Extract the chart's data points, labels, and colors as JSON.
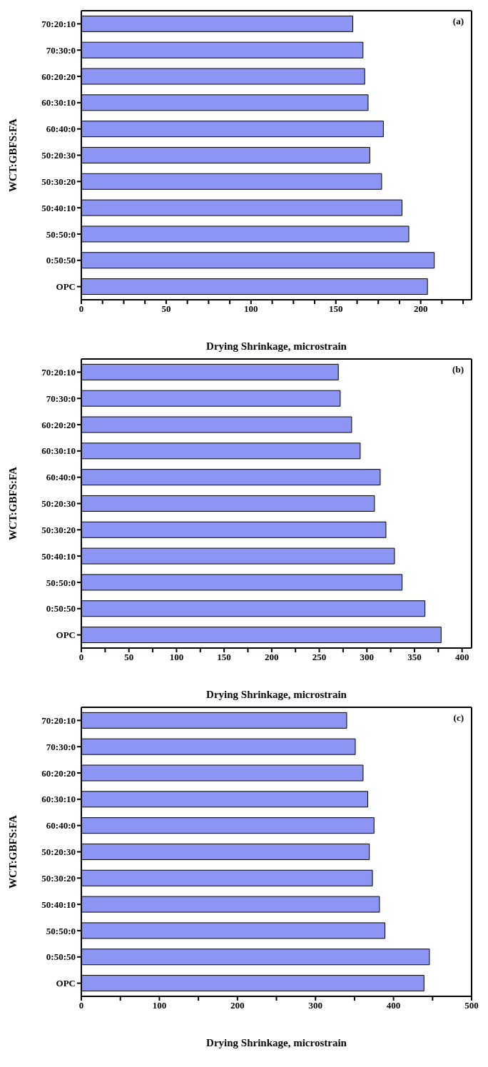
{
  "chart_data": [
    {
      "type": "bar",
      "orientation": "horizontal",
      "xlabel": "Drying Shrinkage, microstrain",
      "ylabel": "WCT:GBFS:FA",
      "annotations": [
        "(a)"
      ],
      "categories": [
        "70:20:10",
        "70:30:0",
        "60:20:20",
        "60:30:10",
        "60:40:0",
        "50:20:30",
        "50:30:20",
        "50:40:10",
        "50:50:0",
        "0:50:50",
        "OPC"
      ],
      "values": [
        160,
        166,
        167,
        169,
        178,
        170,
        177,
        189,
        193,
        208,
        204
      ],
      "color": "#8c94f4",
      "xlim": [
        0,
        230
      ],
      "xticks": [
        0,
        {
          "value": 12.5,
          "label": null
        },
        {
          "value": 25,
          "label": null
        },
        {
          "value": 37.5,
          "label": null
        },
        50,
        {
          "value": 62.5,
          "label": null
        },
        {
          "value": 75,
          "label": null
        },
        {
          "value": 87.5,
          "label": null
        },
        100,
        {
          "value": 112.5,
          "label": null
        },
        {
          "value": 125,
          "label": null
        },
        {
          "value": 137.5,
          "label": null
        },
        150,
        {
          "value": 162.5,
          "label": null
        },
        {
          "value": 175,
          "label": null
        },
        {
          "value": 187.5,
          "label": null
        },
        200,
        {
          "value": 212.5,
          "label": null
        },
        {
          "value": 225,
          "label": null
        }
      ],
      "grid": false,
      "legend": false
    },
    {
      "type": "bar",
      "orientation": "horizontal",
      "xlabel": "Drying Shrinkage, microstrain",
      "ylabel": "WCT:GBFS:FA",
      "annotations": [
        "(b)"
      ],
      "categories": [
        "70:20:10",
        "70:30:0",
        "60:20:20",
        "60:30:10",
        "60:40:0",
        "50:20:30",
        "50:30:20",
        "50:40:10",
        "50:50:0",
        "0:50:50",
        "OPC"
      ],
      "values": [
        270,
        272,
        284,
        293,
        314,
        308,
        320,
        329,
        337,
        361,
        378
      ],
      "color": "#8c94f4",
      "xlim": [
        0,
        410
      ],
      "xticks": [
        0,
        {
          "value": 25,
          "label": null
        },
        50,
        {
          "value": 75,
          "label": null
        },
        100,
        {
          "value": 125,
          "label": null
        },
        150,
        {
          "value": 175,
          "label": null
        },
        200,
        {
          "value": 225,
          "label": null
        },
        250,
        {
          "value": 275,
          "label": null
        },
        300,
        {
          "value": 325,
          "label": null
        },
        350,
        {
          "value": 375,
          "label": null
        },
        400
      ],
      "grid": false,
      "legend": false
    },
    {
      "type": "bar",
      "orientation": "horizontal",
      "xlabel": "Drying Shrinkage, microstrain",
      "ylabel": "WCT:GBFS:FA",
      "annotations": [
        "(c)"
      ],
      "categories": [
        "70:20:10",
        "70:30:0",
        "60:20:20",
        "60:30:10",
        "60:40:0",
        "50:20:30",
        "50:30:20",
        "50:40:10",
        "50:50:0",
        "0:50:50",
        "OPC"
      ],
      "values": [
        340,
        351,
        361,
        367,
        375,
        369,
        373,
        382,
        389,
        446,
        439
      ],
      "color": "#8c94f4",
      "xlim": [
        0,
        500
      ],
      "xticks": [
        0,
        {
          "value": 50,
          "label": null
        },
        100,
        {
          "value": 150,
          "label": null
        },
        200,
        {
          "value": 250,
          "label": null
        },
        300,
        {
          "value": 350,
          "label": null
        },
        400,
        {
          "value": 450,
          "label": null
        },
        500
      ],
      "grid": false,
      "legend": false
    }
  ]
}
